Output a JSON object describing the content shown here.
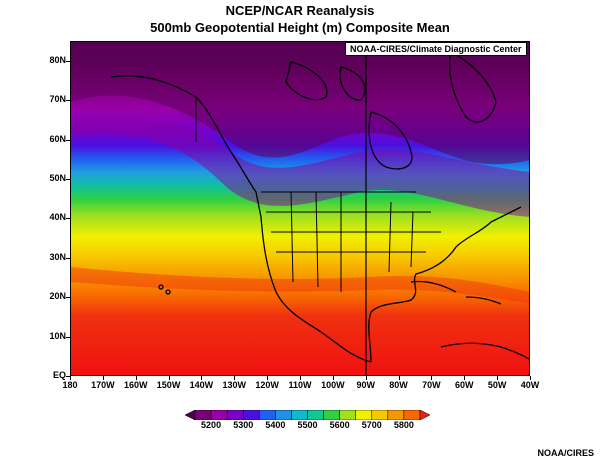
{
  "header": {
    "title": "NCEP/NCAR Reanalysis",
    "subtitle": "500mb Geopotential Height (m) Composite Mean"
  },
  "map": {
    "credit_box": "NOAA-CIRES/Climate Diagnostic Center",
    "lat_labels": [
      "80N",
      "70N",
      "60N",
      "50N",
      "40N",
      "30N",
      "20N",
      "10N",
      "EQ"
    ],
    "lon_labels": [
      "180",
      "170W",
      "160W",
      "150W",
      "140W",
      "130W",
      "120W",
      "110W",
      "100W",
      "90W",
      "80W",
      "70W",
      "60W",
      "50W",
      "40W"
    ],
    "extent": {
      "lon_min": -180,
      "lon_max": -40,
      "lat_min": 0,
      "lat_max": 85
    }
  },
  "legend": {
    "labels": [
      "5200",
      "5300",
      "5400",
      "5500",
      "5600",
      "5700",
      "5800"
    ],
    "colors": [
      "#500050",
      "#7a0078",
      "#9a00a8",
      "#7a00c8",
      "#4a10e0",
      "#2060f0",
      "#2090e8",
      "#10b8d0",
      "#10c890",
      "#30d040",
      "#a0e020",
      "#f0f000",
      "#f8c800",
      "#f89800",
      "#f86800",
      "#f02010"
    ]
  },
  "footer": "NOAA/CIRES"
}
